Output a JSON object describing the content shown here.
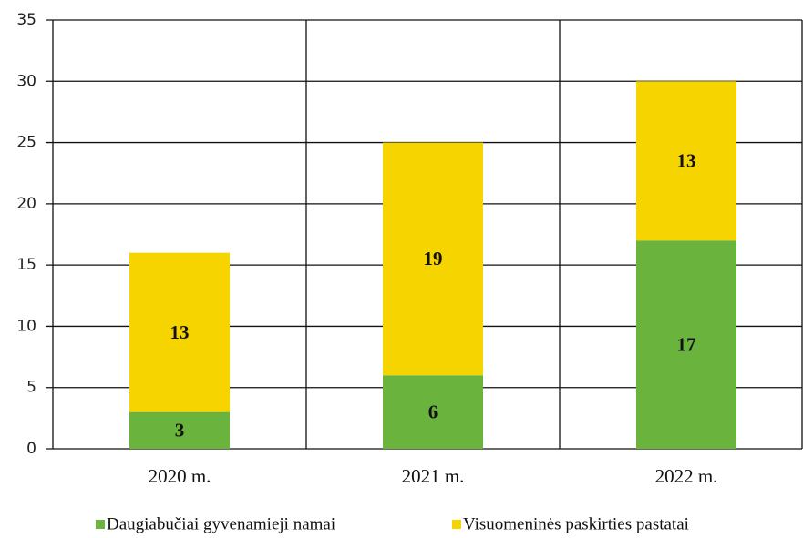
{
  "chart_data": {
    "type": "stacked_bar",
    "categories": [
      "2020 m.",
      "2021 m.",
      "2022 m."
    ],
    "series": [
      {
        "name": "Daugiabučiai gyvenamieji namai",
        "color": "#6ab43e",
        "values": [
          3,
          6,
          17
        ]
      },
      {
        "name": "Visuomeninės paskirties pastatai",
        "color": "#f5d400",
        "values": [
          13,
          19,
          13
        ]
      }
    ],
    "ylim": [
      0,
      35
    ],
    "yticks": [
      0,
      5,
      10,
      15,
      20,
      25,
      30,
      35
    ],
    "grid": true
  }
}
